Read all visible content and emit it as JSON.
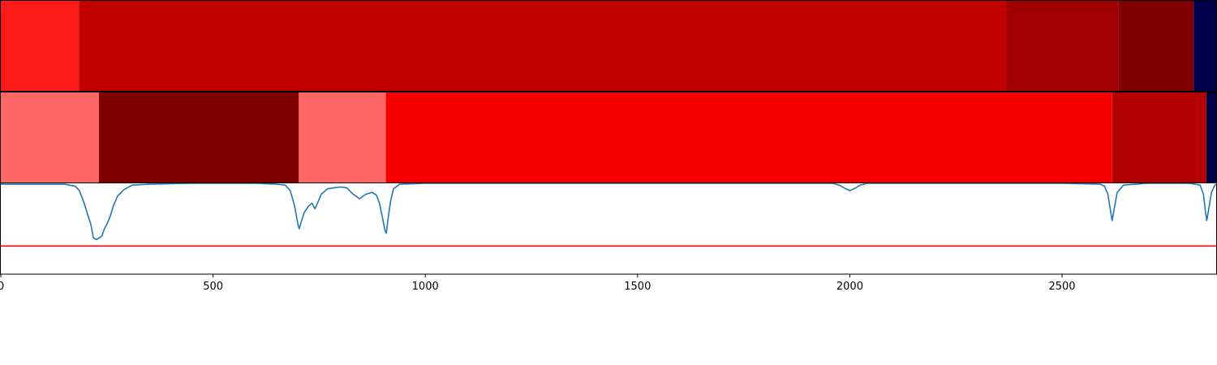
{
  "chart_data": [
    {
      "type": "heatmap",
      "xlim": [
        0,
        2865
      ],
      "segments": [
        {
          "start": 0,
          "end": 184,
          "color": "#ff1a1a"
        },
        {
          "start": 184,
          "end": 2367,
          "color": "#c20000"
        },
        {
          "start": 2367,
          "end": 2633,
          "color": "#a10000"
        },
        {
          "start": 2633,
          "end": 2810,
          "color": "#800000"
        },
        {
          "start": 2810,
          "end": 2865,
          "color": "#00004c"
        }
      ]
    },
    {
      "type": "heatmap",
      "xlim": [
        0,
        2865
      ],
      "segments": [
        {
          "start": 0,
          "end": 231,
          "color": "#ff6666"
        },
        {
          "start": 231,
          "end": 702,
          "color": "#800000"
        },
        {
          "start": 702,
          "end": 907,
          "color": "#ff6666"
        },
        {
          "start": 907,
          "end": 2618,
          "color": "#f70000"
        },
        {
          "start": 2618,
          "end": 2840,
          "color": "#b30000"
        },
        {
          "start": 2840,
          "end": 2865,
          "color": "#00004c"
        }
      ]
    },
    {
      "type": "line",
      "xlim": [
        0,
        2865
      ],
      "ylim": [
        -1.0,
        0.0
      ],
      "grid": false,
      "x_ticks": [
        0,
        500,
        1000,
        1500,
        2000,
        2500
      ],
      "x_tick_labels": [
        "0",
        "500",
        "1000",
        "1500",
        "2000",
        "2500"
      ],
      "threshold": {
        "y": -0.69,
        "color": "#ff0000"
      },
      "series": [
        {
          "color": "#1f77b4",
          "points": [
            [
              0,
              -0.01
            ],
            [
              50,
              -0.01
            ],
            [
              150,
              -0.01
            ],
            [
              175,
              -0.03
            ],
            [
              185,
              -0.08
            ],
            [
              195,
              -0.2
            ],
            [
              205,
              -0.35
            ],
            [
              212,
              -0.45
            ],
            [
              218,
              -0.6
            ],
            [
              225,
              -0.62
            ],
            [
              232,
              -0.6
            ],
            [
              238,
              -0.58
            ],
            [
              244,
              -0.5
            ],
            [
              250,
              -0.45
            ],
            [
              258,
              -0.36
            ],
            [
              265,
              -0.25
            ],
            [
              275,
              -0.14
            ],
            [
              290,
              -0.07
            ],
            [
              310,
              -0.02
            ],
            [
              350,
              -0.01
            ],
            [
              450,
              0.0
            ],
            [
              600,
              0.0
            ],
            [
              650,
              -0.01
            ],
            [
              670,
              -0.02
            ],
            [
              682,
              -0.08
            ],
            [
              692,
              -0.25
            ],
            [
              700,
              -0.45
            ],
            [
              703,
              -0.5
            ],
            [
              708,
              -0.42
            ],
            [
              715,
              -0.32
            ],
            [
              725,
              -0.25
            ],
            [
              733,
              -0.22
            ],
            [
              740,
              -0.28
            ],
            [
              746,
              -0.22
            ],
            [
              755,
              -0.12
            ],
            [
              770,
              -0.06
            ],
            [
              800,
              -0.04
            ],
            [
              815,
              -0.05
            ],
            [
              830,
              -0.12
            ],
            [
              845,
              -0.17
            ],
            [
              860,
              -0.12
            ],
            [
              875,
              -0.1
            ],
            [
              885,
              -0.13
            ],
            [
              892,
              -0.22
            ],
            [
              898,
              -0.35
            ],
            [
              905,
              -0.52
            ],
            [
              908,
              -0.55
            ],
            [
              912,
              -0.4
            ],
            [
              918,
              -0.2
            ],
            [
              925,
              -0.06
            ],
            [
              940,
              -0.01
            ],
            [
              1000,
              0.0
            ],
            [
              1500,
              0.0
            ],
            [
              1960,
              0.0
            ],
            [
              1975,
              -0.02
            ],
            [
              1990,
              -0.06
            ],
            [
              2000,
              -0.08
            ],
            [
              2010,
              -0.06
            ],
            [
              2025,
              -0.02
            ],
            [
              2040,
              0.0
            ],
            [
              2500,
              0.0
            ],
            [
              2590,
              -0.01
            ],
            [
              2600,
              -0.03
            ],
            [
              2608,
              -0.12
            ],
            [
              2614,
              -0.3
            ],
            [
              2618,
              -0.41
            ],
            [
              2622,
              -0.3
            ],
            [
              2630,
              -0.1
            ],
            [
              2645,
              -0.02
            ],
            [
              2700,
              0.0
            ],
            [
              2800,
              0.0
            ],
            [
              2825,
              -0.02
            ],
            [
              2833,
              -0.12
            ],
            [
              2838,
              -0.32
            ],
            [
              2841,
              -0.41
            ],
            [
              2845,
              -0.3
            ],
            [
              2852,
              -0.1
            ],
            [
              2860,
              -0.02
            ],
            [
              2865,
              -0.01
            ]
          ]
        }
      ]
    }
  ]
}
